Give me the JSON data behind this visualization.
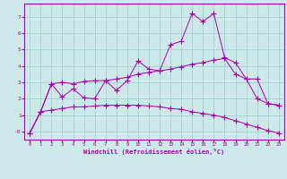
{
  "xlabel": "Windchill (Refroidissement éolien,°C)",
  "background_color": "#cce8e8",
  "line_color": "#aa00aa",
  "grid_color": "#99cccc",
  "xlim": [
    -0.5,
    23.5
  ],
  "ylim": [
    -0.5,
    7.8
  ],
  "xticks": [
    0,
    1,
    2,
    3,
    4,
    5,
    6,
    7,
    8,
    9,
    10,
    11,
    12,
    13,
    14,
    15,
    16,
    17,
    18,
    19,
    20,
    21,
    22,
    23
  ],
  "yticks": [
    0,
    1,
    2,
    3,
    4,
    5,
    6,
    7
  ],
  "ytick_labels": [
    "-0",
    "1",
    "2",
    "3",
    "4",
    "5",
    "6",
    "7"
  ],
  "line1_x": [
    0,
    1,
    2,
    3,
    4,
    5,
    6,
    7,
    8,
    9,
    10,
    11,
    12,
    13,
    14,
    15,
    16,
    17,
    18,
    19,
    20,
    21,
    22,
    23
  ],
  "line1_y": [
    -0.1,
    1.2,
    1.3,
    1.4,
    1.5,
    1.5,
    1.55,
    1.6,
    1.6,
    1.6,
    1.6,
    1.55,
    1.5,
    1.4,
    1.35,
    1.2,
    1.1,
    1.0,
    0.85,
    0.65,
    0.45,
    0.25,
    0.05,
    -0.1
  ],
  "line2_x": [
    0,
    1,
    2,
    3,
    4,
    5,
    6,
    7,
    8,
    9,
    10,
    11,
    12,
    13,
    14,
    15,
    16,
    17,
    18,
    19,
    20,
    21,
    22,
    23
  ],
  "line2_y": [
    -0.1,
    1.2,
    2.9,
    2.1,
    2.6,
    2.05,
    2.0,
    3.1,
    2.5,
    3.1,
    4.3,
    3.8,
    3.7,
    5.3,
    5.5,
    7.2,
    6.7,
    7.2,
    4.5,
    4.2,
    3.2,
    3.2,
    1.7,
    1.6
  ],
  "line3_x": [
    0,
    1,
    2,
    3,
    4,
    5,
    6,
    7,
    8,
    9,
    10,
    11,
    12,
    13,
    14,
    15,
    16,
    17,
    18,
    19,
    20,
    21,
    22,
    23
  ],
  "line3_y": [
    -0.1,
    1.2,
    2.9,
    3.0,
    2.9,
    3.05,
    3.1,
    3.1,
    3.2,
    3.3,
    3.5,
    3.6,
    3.7,
    3.8,
    3.95,
    4.1,
    4.2,
    4.35,
    4.45,
    3.5,
    3.2,
    2.0,
    1.7,
    1.6
  ]
}
